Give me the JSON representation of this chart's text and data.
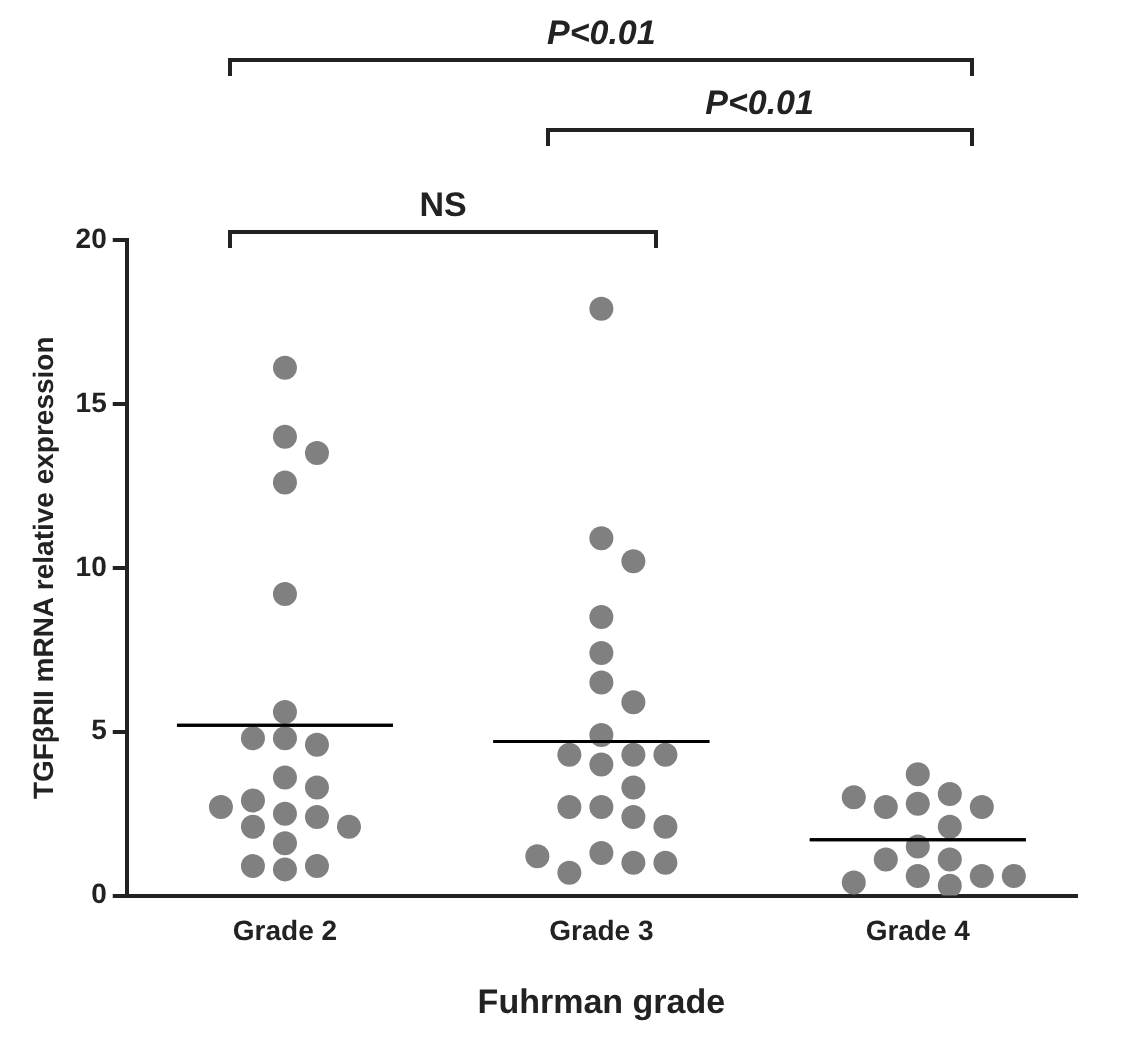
{
  "chart_data": {
    "type": "scatter",
    "xlabel": "Fuhrman grade",
    "ylabel": "TGFβRII mRNA relative expression",
    "categories": [
      "Grade 2",
      "Grade 3",
      "Grade 4"
    ],
    "ylim": [
      0,
      20
    ],
    "yticks": [
      0,
      5,
      10,
      15,
      20
    ],
    "grid": false,
    "legend": false,
    "marker": "circle",
    "series": [
      {
        "color": "#808080",
        "x": [
          "Grade 2",
          "Grade 2",
          "Grade 2",
          "Grade 2",
          "Grade 2",
          "Grade 2",
          "Grade 2",
          "Grade 2",
          "Grade 2",
          "Grade 2",
          "Grade 2",
          "Grade 2",
          "Grade 2",
          "Grade 2",
          "Grade 2",
          "Grade 2",
          "Grade 2",
          "Grade 2",
          "Grade 2",
          "Grade 2",
          "Grade 2"
        ],
        "values": [
          16.1,
          14.0,
          13.5,
          12.6,
          9.2,
          5.6,
          4.8,
          4.6,
          4.8,
          3.6,
          3.3,
          2.9,
          2.5,
          2.4,
          2.1,
          2.1,
          2.7,
          1.6,
          0.9,
          0.8,
          0.9
        ]
      },
      {
        "color": "#808080",
        "x": [
          "Grade 3",
          "Grade 3",
          "Grade 3",
          "Grade 3",
          "Grade 3",
          "Grade 3",
          "Grade 3",
          "Grade 3",
          "Grade 3",
          "Grade 3",
          "Grade 3",
          "Grade 3",
          "Grade 3",
          "Grade 3",
          "Grade 3",
          "Grade 3",
          "Grade 3",
          "Grade 3",
          "Grade 3",
          "Grade 3",
          "Grade 3",
          "Grade 3"
        ],
        "values": [
          17.9,
          10.9,
          10.2,
          8.5,
          7.4,
          6.5,
          5.9,
          4.9,
          4.3,
          4.3,
          4.3,
          4.0,
          3.3,
          2.7,
          2.4,
          2.7,
          2.1,
          1.3,
          1.0,
          0.7,
          1.0,
          1.2
        ]
      },
      {
        "color": "#808080",
        "x": [
          "Grade 4",
          "Grade 4",
          "Grade 4",
          "Grade 4",
          "Grade 4",
          "Grade 4",
          "Grade 4",
          "Grade 4",
          "Grade 4",
          "Grade 4",
          "Grade 4",
          "Grade 4",
          "Grade 4",
          "Grade 4",
          "Grade 4"
        ],
        "values": [
          3.7,
          3.1,
          2.8,
          2.7,
          2.7,
          3.0,
          2.1,
          1.5,
          1.1,
          1.1,
          0.6,
          0.6,
          0.3,
          0.4,
          0.6
        ]
      },
      {
        "type": "box",
        "color": "#000000",
        "boxes": [
          {
            "low": 5.2,
            "q1": 5.2,
            "median": 5.2,
            "q3": 5.2,
            "high": 5.2
          },
          {
            "low": 4.7,
            "q1": 4.7,
            "median": 4.7,
            "q3": 4.7,
            "high": 4.7
          },
          {
            "low": 1.7,
            "q1": 1.7,
            "median": 1.7,
            "q3": 1.7,
            "high": 1.7
          }
        ]
      }
    ],
    "annotations": [
      "NS",
      "P<0.01",
      "P<0.01"
    ]
  }
}
